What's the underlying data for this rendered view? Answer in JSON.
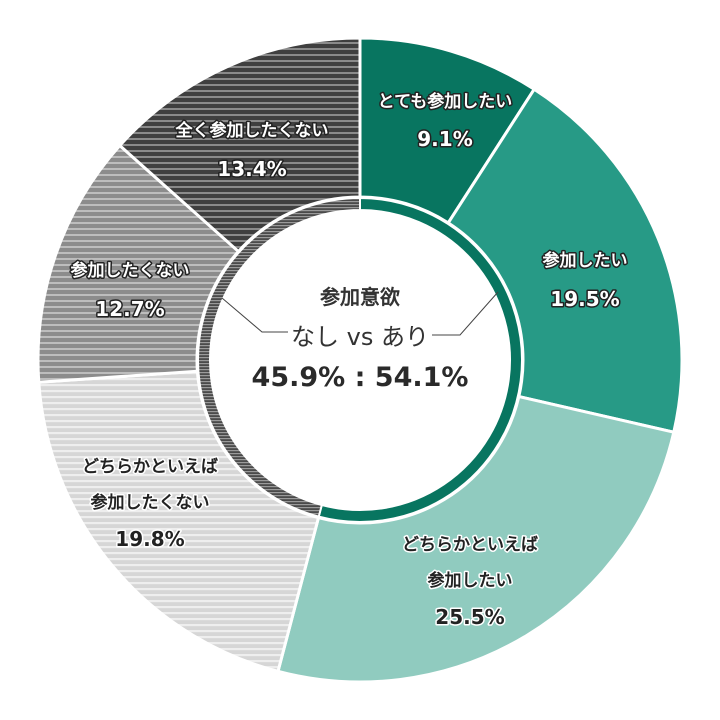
{
  "chart_data": {
    "type": "pie",
    "subtype": "donut-with-inner-ring",
    "title": "参加意欲",
    "start_angle_deg": 0,
    "direction": "clockwise",
    "categories": [
      "とても参加したい",
      "参加したい",
      "どちらかといえば参加したい",
      "どちらかといえば参加したくない",
      "参加したくない",
      "全く参加したくない"
    ],
    "values": [
      9.1,
      19.5,
      25.5,
      19.8,
      12.7,
      13.4
    ],
    "unit": "%",
    "colors": [
      "#087560",
      "#279a86",
      "#90cbbf",
      "#dcdcdc",
      "#959595",
      "#4c4c4c"
    ],
    "patterns": [
      "solid",
      "solid",
      "solid",
      "horizontal-stripes",
      "horizontal-stripes",
      "horizontal-stripes"
    ],
    "inner_ring": {
      "groups": [
        {
          "name": "なし",
          "value": 45.9,
          "color": "#5a5a5a",
          "pattern": "horizontal-stripes"
        },
        {
          "name": "あり",
          "value": 54.1,
          "color": "#087560",
          "pattern": "solid"
        }
      ]
    },
    "annotations": [
      "参加意欲",
      "なし vs あり",
      "45.9% : 54.1%"
    ]
  },
  "center": {
    "title": "参加意欲",
    "subtitle": "なし vs あり",
    "value_text": "45.9% : 54.1%"
  },
  "slices": [
    {
      "lines": [
        "とても参加したい"
      ],
      "pct": "9.1%"
    },
    {
      "lines": [
        "参加したい"
      ],
      "pct": "19.5%"
    },
    {
      "lines": [
        "どちらかといえば",
        "参加したい"
      ],
      "pct": "25.5%"
    },
    {
      "lines": [
        "どちらかといえば",
        "参加したくない"
      ],
      "pct": "19.8%"
    },
    {
      "lines": [
        "参加したくない"
      ],
      "pct": "12.7%"
    },
    {
      "lines": [
        "全く参加したくない"
      ],
      "pct": "13.4%"
    }
  ]
}
